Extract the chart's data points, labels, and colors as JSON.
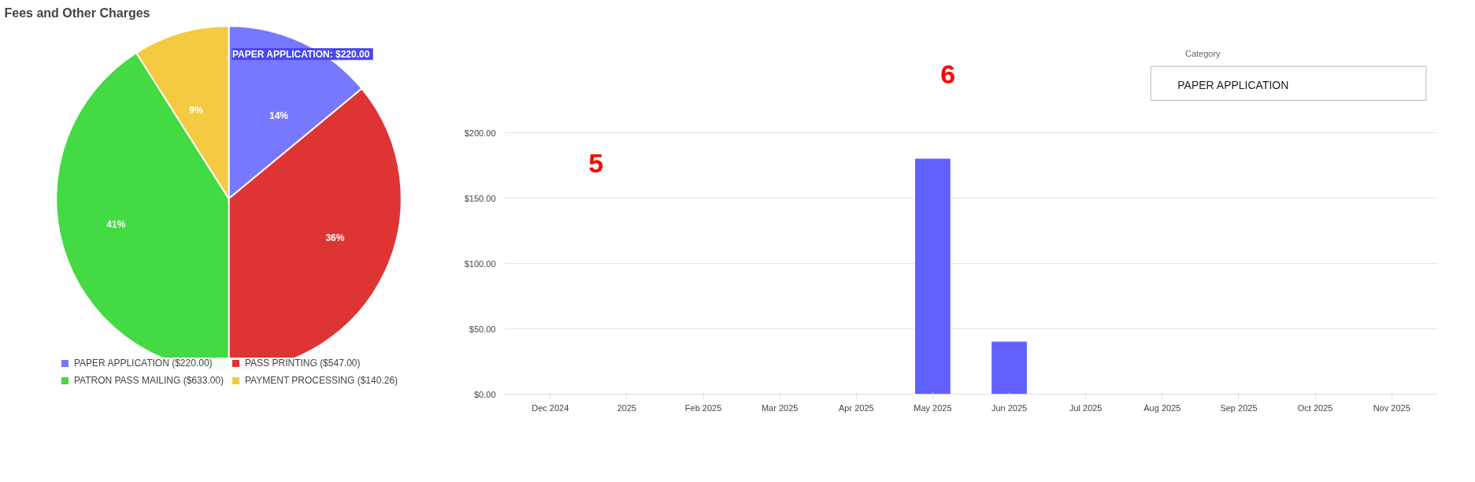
{
  "chart_data": [
    {
      "type": "pie",
      "title": "Fees and Other Charges",
      "categories": [
        "PAPER APPLICATION ($220.00)",
        "PASS PRINTING ($547.00)",
        "PATRON PASS MAILING ($633.00)",
        "PAYMENT PROCESSING ($140.26)"
      ],
      "values": [
        14,
        36,
        41,
        9
      ],
      "colors": [
        "#7878fe",
        "#df3434",
        "#43da43",
        "#f4cb40"
      ],
      "value_labels": [
        "14%",
        "36%",
        "41%",
        "9%"
      ],
      "legend": "bottom",
      "annotations": [
        "PAPER APPLICATION:  $220.00"
      ]
    },
    {
      "type": "bar",
      "categories": [
        "Dec 2024",
        "2025",
        "Feb 2025",
        "Mar 2025",
        "Apr 2025",
        "May 2025",
        "Jun 2025",
        "Jul 2025",
        "Aug 2025",
        "Sep 2025",
        "Oct 2025",
        "Nov 2025"
      ],
      "values": [
        null,
        null,
        null,
        null,
        null,
        180,
        40,
        null,
        null,
        null,
        null,
        null
      ],
      "color": "#6060ff",
      "ylim": [
        0,
        200
      ],
      "yticks": [
        {
          "value": 0,
          "label": "$0.00"
        },
        {
          "value": 50,
          "label": "$50.00"
        },
        {
          "value": 100,
          "label": "$100.00"
        },
        {
          "value": 150,
          "label": "$150.00"
        },
        {
          "value": 200,
          "label": "$200.00"
        }
      ],
      "grid": "y",
      "annotations": [
        "5",
        "6",
        "Category",
        "PAPER APPLICATION"
      ]
    }
  ]
}
